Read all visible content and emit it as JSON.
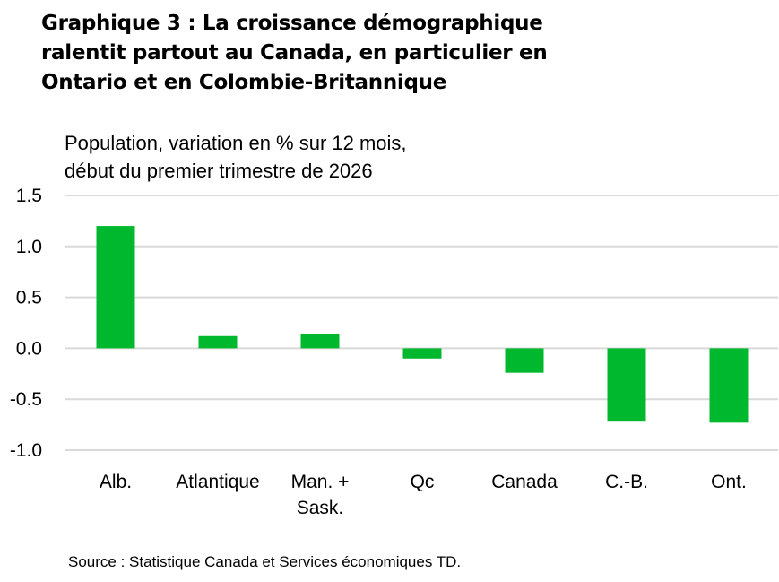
{
  "title_lines": [
    "Graphique 3 : La croissance démographique",
    "ralentit partout au Canada, en particulier en",
    "Ontario et en Colombie-Britannique"
  ],
  "subtitle_lines": [
    "Population, variation en % sur 12 mois,",
    "début du premier trimestre de 2026"
  ],
  "source": "Source : Statistique Canada et Services économiques TD.",
  "colors": {
    "bar": "#00b82e",
    "grid": "#d9d9d9"
  },
  "chart_data": {
    "type": "bar",
    "categories": [
      [
        "Alb."
      ],
      [
        "Atlantique"
      ],
      [
        "Man. +",
        "Sask."
      ],
      [
        "Qc"
      ],
      [
        "Canada"
      ],
      [
        "C.-B."
      ],
      [
        "Ont."
      ]
    ],
    "values": [
      1.2,
      0.12,
      0.14,
      -0.1,
      -0.24,
      -0.72,
      -0.73
    ],
    "ylim": [
      -1.0,
      1.5
    ],
    "yticks": [
      "1.5",
      "1.0",
      "0.5",
      "0.0",
      "-0.5",
      "-1.0"
    ],
    "grid": true
  }
}
